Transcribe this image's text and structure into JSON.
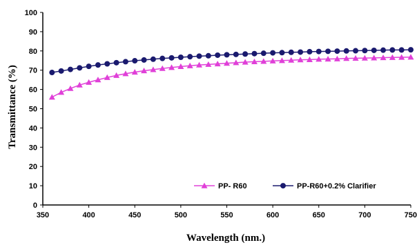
{
  "chart_data": {
    "type": "line",
    "title": "",
    "xlabel": "Wavelength (nm.)",
    "ylabel": "Transmittance (%)",
    "xlim": [
      350,
      750
    ],
    "ylim": [
      0,
      100
    ],
    "xticks": [
      350,
      400,
      450,
      500,
      550,
      600,
      650,
      700,
      750
    ],
    "yticks": [
      0,
      10,
      20,
      30,
      40,
      50,
      60,
      70,
      80,
      90,
      100
    ],
    "x": [
      360,
      370,
      380,
      390,
      400,
      410,
      420,
      430,
      440,
      450,
      460,
      470,
      480,
      490,
      500,
      510,
      520,
      530,
      540,
      550,
      560,
      570,
      580,
      590,
      600,
      610,
      620,
      630,
      640,
      650,
      660,
      670,
      680,
      690,
      700,
      710,
      720,
      730,
      740,
      750
    ],
    "series": [
      {
        "name": "PP- R60",
        "color": "#e040d8",
        "marker": "triangle",
        "values": [
          56.0,
          58.5,
          60.5,
          62.3,
          63.7,
          65.0,
          66.2,
          67.3,
          68.2,
          69.0,
          69.7,
          70.3,
          70.9,
          71.4,
          71.9,
          72.3,
          72.7,
          73.0,
          73.3,
          73.6,
          73.9,
          74.2,
          74.4,
          74.6,
          74.8,
          75.0,
          75.2,
          75.4,
          75.5,
          75.7,
          75.8,
          75.9,
          76.1,
          76.2,
          76.3,
          76.4,
          76.5,
          76.6,
          76.7,
          76.8
        ]
      },
      {
        "name": "PP-R60+0.2% Clarifier",
        "color": "#1a1a6e",
        "marker": "circle",
        "values": [
          68.8,
          69.6,
          70.4,
          71.2,
          72.0,
          72.7,
          73.3,
          73.9,
          74.4,
          74.9,
          75.3,
          75.7,
          76.1,
          76.4,
          76.7,
          77.0,
          77.3,
          77.5,
          77.8,
          78.0,
          78.2,
          78.4,
          78.6,
          78.8,
          79.0,
          79.1,
          79.3,
          79.4,
          79.6,
          79.7,
          79.8,
          79.9,
          80.0,
          80.1,
          80.2,
          80.3,
          80.4,
          80.5,
          80.5,
          80.6
        ]
      }
    ],
    "legend": "bottom-right",
    "grid": false
  }
}
